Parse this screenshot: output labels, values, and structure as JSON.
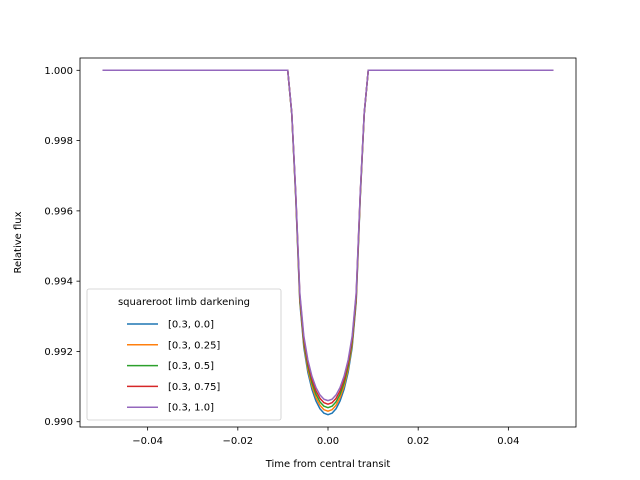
{
  "chart_data": {
    "type": "line",
    "title": "",
    "xlabel": "Time from central transit",
    "ylabel": "Relative flux",
    "xlim": [
      -0.055,
      0.055
    ],
    "ylim": [
      0.98985,
      1.00035
    ],
    "xticks": [
      -0.04,
      -0.02,
      0.0,
      0.02,
      0.04
    ],
    "xtick_labels": [
      "−0.04",
      "−0.02",
      "0.00",
      "0.02",
      "0.04"
    ],
    "yticks": [
      0.99,
      0.992,
      0.994,
      0.996,
      0.998,
      1.0
    ],
    "ytick_labels": [
      "0.990",
      "0.992",
      "0.994",
      "0.996",
      "0.998",
      "1.000"
    ],
    "grid": false,
    "legend": {
      "title": "squareroot limb darkening",
      "placement": "lower-left"
    },
    "transit": {
      "x_range": [
        -0.05,
        0.05
      ],
      "samples": 113,
      "baseline": 1.0,
      "half_duration": 0.0085,
      "full_duration_half": 0.0065
    },
    "series": [
      {
        "name": "[0.3, 0.0]",
        "color": "#1f77b4",
        "min_flux": 0.9902
      },
      {
        "name": "[0.3, 0.25]",
        "color": "#ff7f0e",
        "min_flux": 0.9903
      },
      {
        "name": "[0.3, 0.5]",
        "color": "#2ca02c",
        "min_flux": 0.9904
      },
      {
        "name": "[0.3, 0.75]",
        "color": "#d62728",
        "min_flux": 0.9905
      },
      {
        "name": "[0.3, 1.0]",
        "color": "#9467bd",
        "min_flux": 0.9906
      }
    ]
  }
}
